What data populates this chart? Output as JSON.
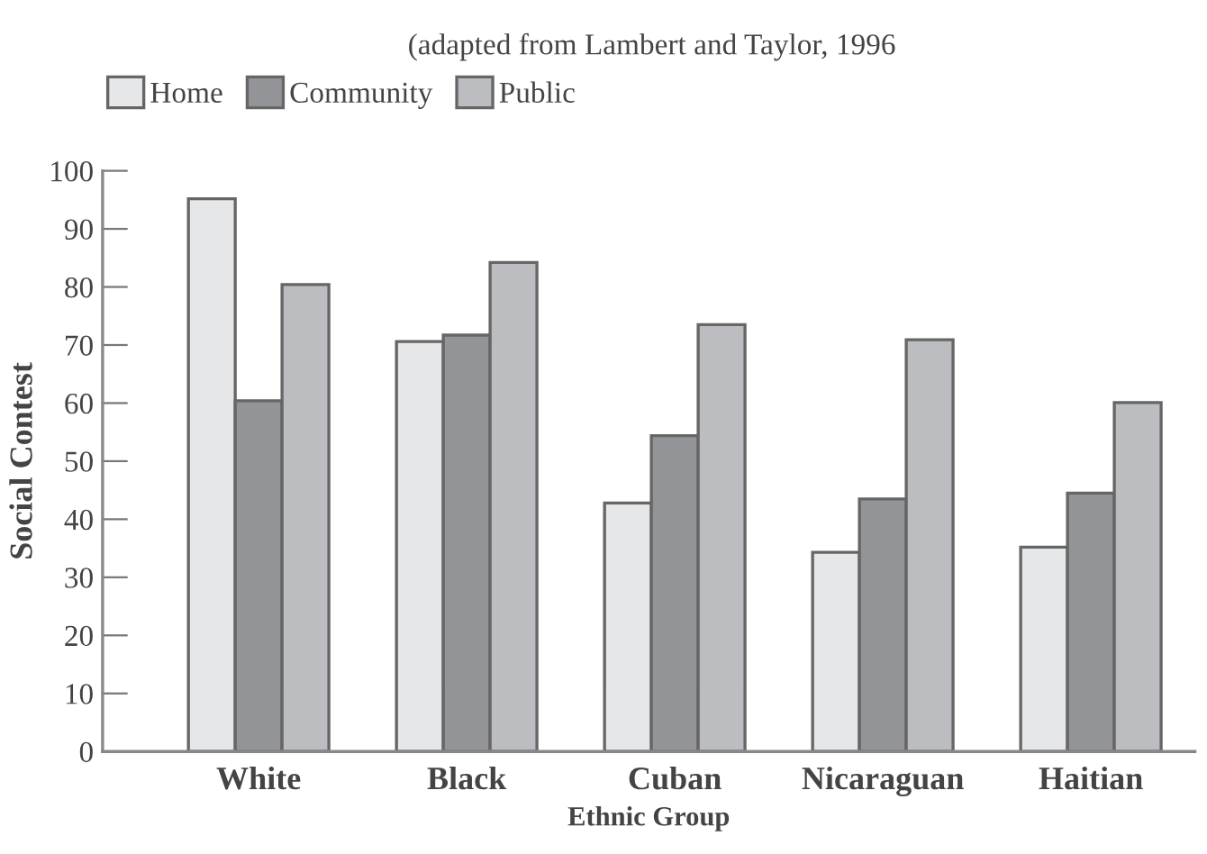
{
  "chart_data": {
    "type": "bar",
    "annotations": [
      "(adapted from Lambert and Taylor, 1996"
    ],
    "xlabel": "Ethnic Group",
    "ylabel": "Social Contest",
    "categories": [
      "White",
      "Black",
      "Cuban",
      "Nicaraguan",
      "Haitian"
    ],
    "series": [
      {
        "name": "Home",
        "color": "#e6e7e9",
        "values": [
          95.2,
          70.6,
          42.8,
          34.3,
          35.2
        ]
      },
      {
        "name": "Community",
        "color": "#939497",
        "values": [
          60.4,
          71.7,
          54.4,
          43.5,
          44.5
        ]
      },
      {
        "name": "Public",
        "color": "#bcbdc0",
        "values": [
          80.4,
          84.2,
          73.5,
          70.9,
          60.1
        ]
      }
    ],
    "ylim": [
      0,
      100
    ],
    "yticks": [
      0,
      10,
      20,
      30,
      40,
      50,
      60,
      70,
      80,
      90,
      100
    ],
    "grid": false,
    "legend": "top left"
  }
}
